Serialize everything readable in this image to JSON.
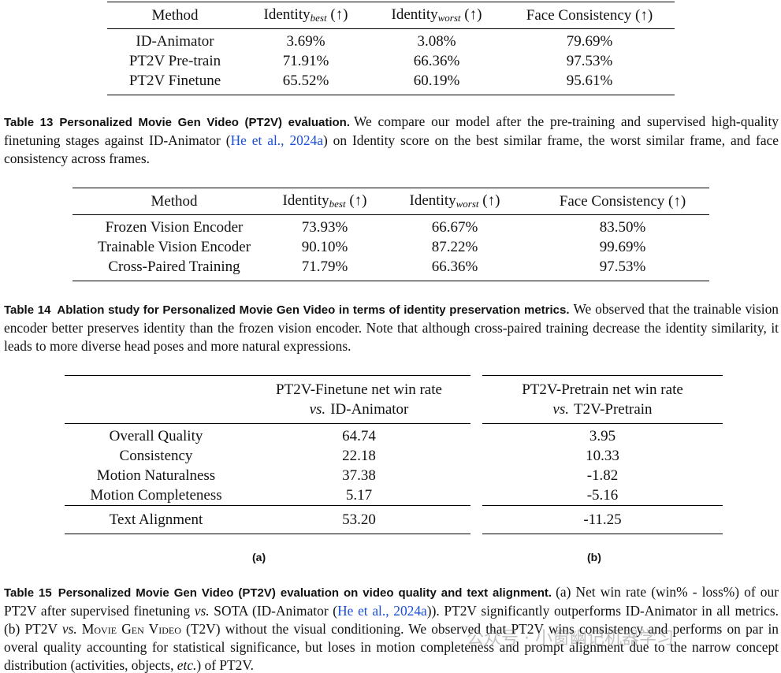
{
  "table13": {
    "headers": [
      "Method",
      {
        "main": "Identity",
        "sub": "best",
        "suffix": " (↑)"
      },
      {
        "main": "Identity",
        "sub": "worst",
        "suffix": " (↑)"
      },
      "Face Consistency (↑)"
    ],
    "rows": [
      [
        "ID-Animator",
        "3.69%",
        "3.08%",
        "79.69%"
      ],
      [
        "PT2V Pre-train",
        "71.91%",
        "66.36%",
        "97.53%"
      ],
      [
        "PT2V Finetune",
        "65.52%",
        "60.19%",
        "95.61%"
      ]
    ],
    "caption": {
      "label": "Table 13",
      "title": "Personalized Movie Gen Video (PT2V) evaluation.",
      "segments": [
        {
          "text": "We compare our model after the pre-training and supervised high-quality finetuning stages against ID-Animator ("
        },
        {
          "text": "He et al., 2024a",
          "style": "link"
        },
        {
          "text": ") on Identity score on the best similar frame, the worst similar frame, and face consistency across frames."
        }
      ]
    }
  },
  "table14": {
    "headers": [
      "Method",
      {
        "main": "Identity",
        "sub": "best",
        "suffix": " (↑)"
      },
      {
        "main": "Identity",
        "sub": "worst",
        "suffix": " (↑)"
      },
      "Face Consistency (↑)"
    ],
    "rows": [
      [
        "Frozen Vision Encoder",
        "73.93%",
        "66.67%",
        "83.50%"
      ],
      [
        "Trainable Vision Encoder",
        "90.10%",
        "87.22%",
        "99.69%"
      ],
      [
        "Cross-Paired Training",
        "71.79%",
        "66.36%",
        "97.53%"
      ]
    ],
    "caption": {
      "label": "Table 14",
      "title": "Ablation study for Personalized Movie Gen Video in terms of identity preservation metrics.",
      "segments": [
        {
          "text": "We observed that the trainable vision encoder better preserves identity than the frozen vision encoder. Note that although cross-paired training decrease the identity similarity, it leads to more diverse head poses and more natural expressions."
        }
      ]
    }
  },
  "table15": {
    "header_a": {
      "line1": "PT2V-Finetune net win rate",
      "vs": "vs.",
      "line2": "ID-Animator"
    },
    "header_b": {
      "line1": "PT2V-Pretrain net win rate",
      "vs": "vs.",
      "line2": "T2V-Pretrain"
    },
    "rows": [
      {
        "label": "Overall Quality",
        "a": "64.74",
        "b": "3.95"
      },
      {
        "label": "Consistency",
        "a": "22.18",
        "b": "10.33"
      },
      {
        "label": "Motion Naturalness",
        "a": "37.38",
        "b": "-1.82"
      },
      {
        "label": "Motion Completeness",
        "a": "5.17",
        "b": "-5.16"
      },
      {
        "label": "Text Alignment",
        "a": "53.20",
        "b": "-11.25"
      }
    ],
    "sub_a": "(a)",
    "sub_b": "(b)",
    "caption": {
      "label": "Table 15",
      "title": "Personalized Movie Gen Video (PT2V) evaluation on video quality and text alignment.",
      "segments": [
        {
          "text": "(a) Net win rate (win% - loss%) of our PT2V after supervised finetuning "
        },
        {
          "text": "vs.",
          "style": "italic"
        },
        {
          "text": " SOTA (ID-Animator ("
        },
        {
          "text": "He et al., 2024a",
          "style": "link"
        },
        {
          "text": ")). PT2V significantly outperforms ID-Animator in all metrics. (b) PT2V "
        },
        {
          "text": "vs.",
          "style": "italic"
        },
        {
          "text": " "
        },
        {
          "text": "Movie Gen Video",
          "style": "smallcaps"
        },
        {
          "text": " (T2V) without the visual conditioning. We observed that PT2V wins consistency and performs on par in overal quality accounting for statistical significance, but loses in motion completeness and prompt alignment due to the narrow concept distribution (activities, objects, "
        },
        {
          "text": "etc.",
          "style": "italic"
        },
        {
          "text": ") of PT2V."
        }
      ]
    }
  },
  "watermark": "公众号 · 小窗幽记机器学习"
}
